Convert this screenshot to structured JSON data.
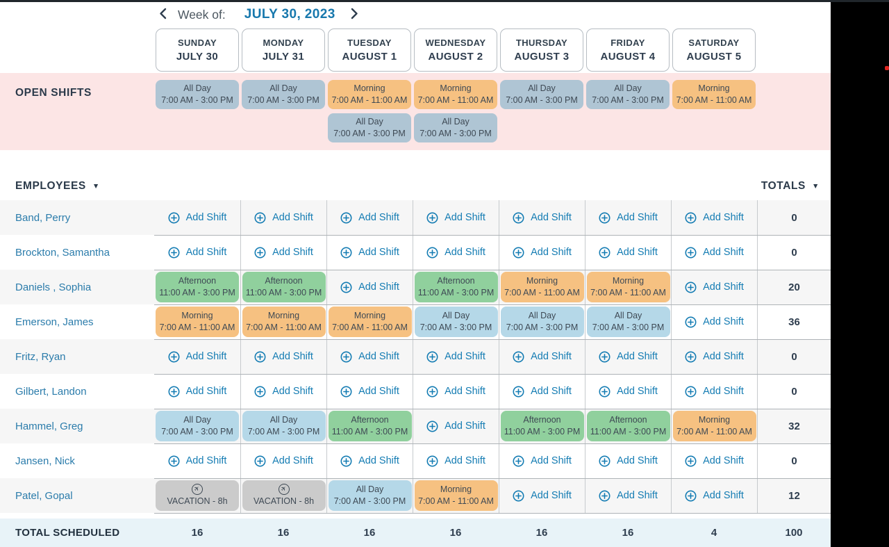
{
  "week_nav": {
    "label": "Week of:",
    "date": "JULY 30, 2023"
  },
  "days": [
    {
      "name": "SUNDAY",
      "date": "JULY 30"
    },
    {
      "name": "MONDAY",
      "date": "JULY 31"
    },
    {
      "name": "TUESDAY",
      "date": "AUGUST 1"
    },
    {
      "name": "WEDNESDAY",
      "date": "AUGUST 2"
    },
    {
      "name": "THURSDAY",
      "date": "AUGUST 3"
    },
    {
      "name": "FRIDAY",
      "date": "AUGUST 4"
    },
    {
      "name": "SATURDAY",
      "date": "AUGUST 5"
    }
  ],
  "shift_defs": {
    "morning": {
      "label": "Morning",
      "time": "7:00 AM - 11:00 AM",
      "style": "morning"
    },
    "afternoon": {
      "label": "Afternoon",
      "time": "11:00 AM - 3:00 PM",
      "style": "afternoon"
    },
    "allday": {
      "label": "All Day",
      "time": "7:00 AM - 3:00 PM",
      "style": "allday"
    },
    "open_allday": {
      "label": "All Day",
      "time": "7:00 AM - 3:00 PM",
      "style": "open-allday"
    },
    "vacation": {
      "label": "VACATION - 8h",
      "icon": "airplane-circle-icon",
      "style": "vacation"
    }
  },
  "open_shifts": {
    "label": "OPEN SHIFTS",
    "rows": [
      [
        "open_allday",
        "open_allday",
        "morning",
        "morning",
        "open_allday",
        "open_allday",
        "morning"
      ],
      [
        null,
        null,
        "open_allday",
        "open_allday",
        null,
        null,
        null
      ]
    ]
  },
  "sections": {
    "employees_label": "EMPLOYEES",
    "totals_label": "TOTALS",
    "sort_icon": "▼"
  },
  "add_shift_label": "Add Shift",
  "employees": [
    {
      "name": "Band, Perry",
      "cells": [
        "add",
        "add",
        "add",
        "add",
        "add",
        "add",
        "add"
      ],
      "total": "0"
    },
    {
      "name": "Brockton, Samantha",
      "cells": [
        "add",
        "add",
        "add",
        "add",
        "add",
        "add",
        "add"
      ],
      "total": "0"
    },
    {
      "name": "Daniels , Sophia",
      "cells": [
        "afternoon",
        "afternoon",
        "add",
        "afternoon",
        "morning",
        "morning",
        "add"
      ],
      "total": "20"
    },
    {
      "name": "Emerson, James",
      "cells": [
        "morning",
        "morning",
        "morning",
        "allday",
        "allday",
        "allday",
        "add"
      ],
      "total": "36"
    },
    {
      "name": "Fritz, Ryan",
      "cells": [
        "add",
        "add",
        "add",
        "add",
        "add",
        "add",
        "add"
      ],
      "total": "0"
    },
    {
      "name": "Gilbert, Landon",
      "cells": [
        "add",
        "add",
        "add",
        "add",
        "add",
        "add",
        "add"
      ],
      "total": "0"
    },
    {
      "name": "Hammel, Greg",
      "cells": [
        "allday",
        "allday",
        "afternoon",
        "add",
        "afternoon",
        "afternoon",
        "morning"
      ],
      "total": "32"
    },
    {
      "name": "Jansen, Nick",
      "cells": [
        "add",
        "add",
        "add",
        "add",
        "add",
        "add",
        "add"
      ],
      "total": "0"
    },
    {
      "name": "Patel, Gopal",
      "cells": [
        "vacation",
        "vacation",
        "allday",
        "morning",
        "add",
        "add",
        "add"
      ],
      "total": "12"
    }
  ],
  "total_scheduled": {
    "label": "TOTAL SCHEDULED",
    "values": [
      "16",
      "16",
      "16",
      "16",
      "16",
      "16",
      "4"
    ],
    "total": "100"
  },
  "colors": {
    "accent_blue": "#1778ad",
    "employee_link": "#2b7cab",
    "add_shift_blue": "#147cb3",
    "morning_chip": "#f6c181",
    "afternoon_chip": "#90d09d",
    "allday_chip": "#b5d8e8",
    "open_allday_chip": "#afc5d4",
    "vacation_chip": "#cbcbcb",
    "open_shifts_band": "#fce5e5",
    "total_row": "#e8f3f8",
    "alt_row": "#f6f6f6",
    "side_bar": "#000000",
    "red_dot": "#e0241f"
  }
}
